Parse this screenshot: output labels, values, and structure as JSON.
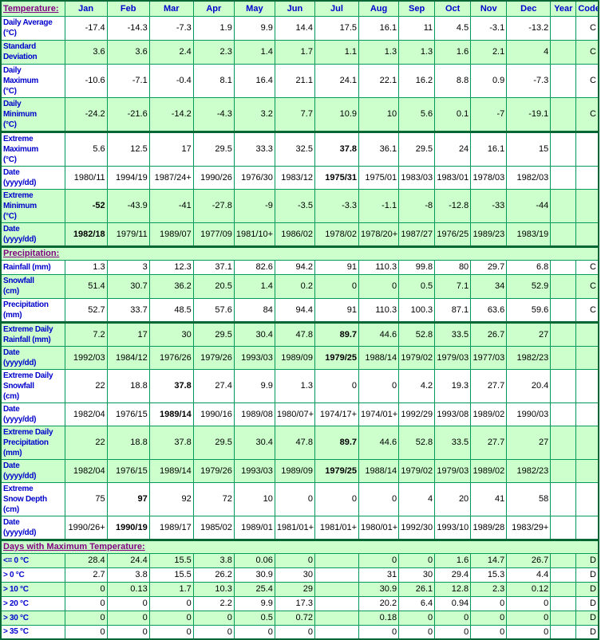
{
  "colors": {
    "cell_green": "#CCFFCC",
    "cell_white": "#FFFFFF",
    "border_green": "#009A5B",
    "border_dark_green": "#006633",
    "label_blue": "#0000CC",
    "section_purple": "#800080",
    "data_black": "#000000"
  },
  "chart_data": {
    "type": "table",
    "title": "Climate normals and extremes data table",
    "columns": {
      "label_header": "Temperature:",
      "months": [
        "Jan",
        "Feb",
        "Mar",
        "Apr",
        "May",
        "Jun",
        "Jul",
        "Aug",
        "Sep",
        "Oct",
        "Nov",
        "Dec"
      ],
      "year": "Year",
      "code": "Code"
    },
    "rows": [
      {
        "label": "Daily Average\n(°C)",
        "bg": "white",
        "values": [
          "-17.4",
          "-14.3",
          "-7.3",
          "1.9",
          "9.9",
          "14.4",
          "17.5",
          "16.1",
          "11",
          "4.5",
          "-3.1",
          "-13.2"
        ],
        "year": "",
        "code": "C",
        "bold": []
      },
      {
        "label": "Standard\nDeviation",
        "bg": "green",
        "values": [
          "3.6",
          "3.6",
          "2.4",
          "2.3",
          "1.4",
          "1.7",
          "1.1",
          "1.3",
          "1.3",
          "1.6",
          "2.1",
          "4"
        ],
        "year": "",
        "code": "C",
        "bold": []
      },
      {
        "label": "Daily\nMaximum\n(°C)",
        "bg": "white",
        "values": [
          "-10.6",
          "-7.1",
          "-0.4",
          "8.1",
          "16.4",
          "21.1",
          "24.1",
          "22.1",
          "16.2",
          "8.8",
          "0.9",
          "-7.3"
        ],
        "year": "",
        "code": "C",
        "bold": []
      },
      {
        "label": "Daily\nMinimum\n(°C)",
        "bg": "green",
        "values": [
          "-24.2",
          "-21.6",
          "-14.2",
          "-4.3",
          "3.2",
          "7.7",
          "10.9",
          "10",
          "5.6",
          "0.1",
          "-7",
          "-19.1"
        ],
        "year": "",
        "code": "C",
        "bold": []
      },
      {
        "label": "Extreme\nMaximum\n(°C)",
        "bg": "white",
        "thick_top": true,
        "values": [
          "5.6",
          "12.5",
          "17",
          "29.5",
          "33.3",
          "32.5",
          "37.8",
          "36.1",
          "29.5",
          "24",
          "16.1",
          "15"
        ],
        "year": "",
        "code": "",
        "bold": [
          6
        ]
      },
      {
        "label": "Date\n(yyyy/dd)",
        "bg": "white",
        "values": [
          "1980/11",
          "1994/19",
          "1987/24+",
          "1990/26",
          "1976/30",
          "1983/12",
          "1975/31",
          "1975/01",
          "1983/03",
          "1983/01",
          "1978/03",
          "1982/03"
        ],
        "year": "",
        "code": "",
        "bold": [
          6
        ]
      },
      {
        "label": "Extreme\nMinimum\n(°C)",
        "bg": "green",
        "values": [
          "-52",
          "-43.9",
          "-41",
          "-27.8",
          "-9",
          "-3.5",
          "-3.3",
          "-1.1",
          "-8",
          "-12.8",
          "-33",
          "-44"
        ],
        "year": "",
        "code": "",
        "bold": [
          0
        ]
      },
      {
        "label": "Date\n(yyyy/dd)",
        "bg": "green",
        "values": [
          "1982/18",
          "1979/11",
          "1989/07",
          "1977/09",
          "1981/10+",
          "1986/02",
          "1978/02",
          "1978/20+",
          "1987/27",
          "1976/25",
          "1989/23",
          "1983/19"
        ],
        "year": "",
        "code": "",
        "bold": [
          0
        ]
      },
      {
        "section": "Precipitation:",
        "thick_top": true
      },
      {
        "label": "Rainfall (mm)",
        "bg": "white",
        "values": [
          "1.3",
          "3",
          "12.3",
          "37.1",
          "82.6",
          "94.2",
          "91",
          "110.3",
          "99.8",
          "80",
          "29.7",
          "6.8"
        ],
        "year": "",
        "code": "C",
        "bold": []
      },
      {
        "label": "Snowfall\n(cm)",
        "bg": "green",
        "values": [
          "51.4",
          "30.7",
          "36.2",
          "20.5",
          "1.4",
          "0.2",
          "0",
          "0",
          "0.5",
          "7.1",
          "34",
          "52.9"
        ],
        "year": "",
        "code": "C",
        "bold": []
      },
      {
        "label": "Precipitation\n(mm)",
        "bg": "white",
        "values": [
          "52.7",
          "33.7",
          "48.5",
          "57.6",
          "84",
          "94.4",
          "91",
          "110.3",
          "100.3",
          "87.1",
          "63.6",
          "59.6"
        ],
        "year": "",
        "code": "C",
        "bold": []
      },
      {
        "label": "Extreme Daily\nRainfall (mm)",
        "bg": "green",
        "thick_top": true,
        "values": [
          "7.2",
          "17",
          "30",
          "29.5",
          "30.4",
          "47.8",
          "89.7",
          "44.6",
          "52.8",
          "33.5",
          "26.7",
          "27"
        ],
        "year": "",
        "code": "",
        "bold": [
          6
        ]
      },
      {
        "label": "Date\n(yyyy/dd)",
        "bg": "green",
        "values": [
          "1992/03",
          "1984/12",
          "1976/26",
          "1979/26",
          "1993/03",
          "1989/09",
          "1979/25",
          "1988/14",
          "1979/02",
          "1979/03",
          "1977/03",
          "1982/23"
        ],
        "year": "",
        "code": "",
        "bold": [
          6
        ]
      },
      {
        "label": "Extreme Daily\nSnowfall\n(cm)",
        "bg": "white",
        "values": [
          "22",
          "18.8",
          "37.8",
          "27.4",
          "9.9",
          "1.3",
          "0",
          "0",
          "4.2",
          "19.3",
          "27.7",
          "20.4"
        ],
        "year": "",
        "code": "",
        "bold": [
          2
        ]
      },
      {
        "label": "Date\n(yyyy/dd)",
        "bg": "white",
        "values": [
          "1982/04",
          "1976/15",
          "1989/14",
          "1990/16",
          "1989/08",
          "1980/07+",
          "1974/17+",
          "1974/01+",
          "1992/29",
          "1993/08",
          "1989/02",
          "1990/03"
        ],
        "year": "",
        "code": "",
        "bold": [
          2
        ]
      },
      {
        "label": "Extreme Daily\nPrecipitation\n(mm)",
        "bg": "green",
        "values": [
          "22",
          "18.8",
          "37.8",
          "29.5",
          "30.4",
          "47.8",
          "89.7",
          "44.6",
          "52.8",
          "33.5",
          "27.7",
          "27"
        ],
        "year": "",
        "code": "",
        "bold": [
          6
        ]
      },
      {
        "label": "Date\n(yyyy/dd)",
        "bg": "green",
        "values": [
          "1982/04",
          "1976/15",
          "1989/14",
          "1979/26",
          "1993/03",
          "1989/09",
          "1979/25",
          "1988/14",
          "1979/02",
          "1979/03",
          "1989/02",
          "1982/23"
        ],
        "year": "",
        "code": "",
        "bold": [
          6
        ]
      },
      {
        "label": "Extreme\nSnow Depth\n(cm)",
        "bg": "white",
        "values": [
          "75",
          "97",
          "92",
          "72",
          "10",
          "0",
          "0",
          "0",
          "4",
          "20",
          "41",
          "58"
        ],
        "year": "",
        "code": "",
        "bold": [
          1
        ]
      },
      {
        "label": "Date\n(yyyy/dd)",
        "bg": "white",
        "values": [
          "1990/26+",
          "1990/19",
          "1989/17",
          "1985/02",
          "1989/01",
          "1981/01+",
          "1981/01+",
          "1980/01+",
          "1992/30",
          "1993/10",
          "1989/28",
          "1983/29+"
        ],
        "year": "",
        "code": "",
        "bold": [
          1
        ]
      },
      {
        "section": "Days with Maximum Temperature:",
        "thick_top": true
      },
      {
        "label": "<= 0 °C",
        "bg": "green",
        "values": [
          "28.4",
          "24.4",
          "15.5",
          "3.8",
          "0.06",
          "0",
          "",
          "0",
          "0",
          "1.6",
          "14.7",
          "26.7"
        ],
        "year": "",
        "code": "D",
        "bold": []
      },
      {
        "label": "> 0 °C",
        "bg": "white",
        "values": [
          "2.7",
          "3.8",
          "15.5",
          "26.2",
          "30.9",
          "30",
          "",
          "31",
          "30",
          "29.4",
          "15.3",
          "4.4"
        ],
        "year": "",
        "code": "D",
        "bold": []
      },
      {
        "label": "> 10 °C",
        "bg": "green",
        "values": [
          "0",
          "0.13",
          "1.7",
          "10.3",
          "25.4",
          "29",
          "",
          "30.9",
          "26.1",
          "12.8",
          "2.3",
          "0.12"
        ],
        "year": "",
        "code": "D",
        "bold": []
      },
      {
        "label": "> 20 °C",
        "bg": "white",
        "values": [
          "0",
          "0",
          "0",
          "2.2",
          "9.9",
          "17.3",
          "",
          "20.2",
          "6.4",
          "0.94",
          "0",
          "0"
        ],
        "year": "",
        "code": "D",
        "bold": []
      },
      {
        "label": "> 30 °C",
        "bg": "green",
        "values": [
          "0",
          "0",
          "0",
          "0",
          "0.5",
          "0.72",
          "",
          "0.18",
          "0",
          "0",
          "0",
          "0"
        ],
        "year": "",
        "code": "D",
        "bold": []
      },
      {
        "label": "> 35 °C",
        "bg": "white",
        "values": [
          "0",
          "0",
          "0",
          "0",
          "0",
          "0",
          "",
          "0",
          "0",
          "0",
          "0",
          "0"
        ],
        "year": "",
        "code": "D",
        "bold": []
      }
    ]
  }
}
